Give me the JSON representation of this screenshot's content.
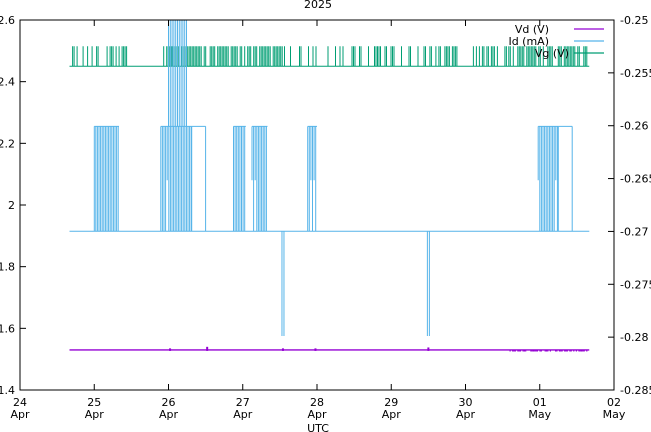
{
  "chart_data": {
    "type": "line",
    "title": "2025",
    "xlabel": "UTC",
    "ylabel": "",
    "y2label": "",
    "x_ticks": [
      {
        "day": "24",
        "month": "Apr"
      },
      {
        "day": "25",
        "month": "Apr"
      },
      {
        "day": "26",
        "month": "Apr"
      },
      {
        "day": "27",
        "month": "Apr"
      },
      {
        "day": "28",
        "month": "Apr"
      },
      {
        "day": "29",
        "month": "Apr"
      },
      {
        "day": "30",
        "month": "Apr"
      },
      {
        "day": "01",
        "month": "May"
      },
      {
        "day": "02",
        "month": "May"
      }
    ],
    "xlim": [
      "2025-04-24T00:00",
      "2025-05-02T00:00"
    ],
    "ylim": [
      1.4,
      2.6
    ],
    "y_ticks": [
      "1.4",
      "1.6",
      "1.8",
      "2",
      "2.2",
      "2.4",
      "2.6"
    ],
    "y2lim": [
      -0.285,
      -0.25
    ],
    "y2_ticks": [
      "-0.285",
      "-0.28",
      "-0.275",
      "-0.27",
      "-0.265",
      "-0.26",
      "-0.255",
      "-0.25"
    ],
    "grid": false,
    "legend_position": "top-right",
    "series": [
      {
        "name": "Vd (V)",
        "axis": "left",
        "color": "#9400d3",
        "baseline": 1.53,
        "alt": 1.525,
        "start": "2025-04-24T16:00",
        "end": "2025-05-01T16:00",
        "spikes": [
          {
            "t": "2025-04-26T00:30",
            "v": 1.535
          },
          {
            "t": "2025-04-26T12:30",
            "v": 1.54
          },
          {
            "t": "2025-04-27T13:00",
            "v": 1.535
          },
          {
            "t": "2025-04-27T23:30",
            "v": 1.535
          },
          {
            "t": "2025-04-29T12:00",
            "v": 1.538
          }
        ],
        "jitter_start": "2025-04-30T14:00",
        "jitter_end": "2025-05-01T16:00"
      },
      {
        "name": "Id (mA)",
        "axis": "left",
        "color": "#56b4e9",
        "baseline": 1.915,
        "high": 2.255,
        "mid": 2.08,
        "start": "2025-04-24T16:00",
        "end": "2025-05-01T16:00",
        "high_blocks": [
          {
            "start": "2025-04-25T00:00",
            "end": "2025-04-25T08:00",
            "dense": true
          },
          {
            "start": "2025-04-25T21:30",
            "end": "2025-04-26T07:30",
            "dense": true
          },
          {
            "start": "2025-04-26T07:30",
            "end": "2025-04-26T12:00",
            "dense": false
          },
          {
            "start": "2025-04-26T21:00",
            "end": "2025-04-27T01:00",
            "dense": true
          },
          {
            "start": "2025-04-27T03:00",
            "end": "2025-04-27T08:00",
            "dense": true
          },
          {
            "start": "2025-04-27T21:00",
            "end": "2025-04-28T00:00",
            "dense": true
          },
          {
            "start": "2025-04-30T23:30",
            "end": "2025-05-01T06:00",
            "dense": true
          },
          {
            "start": "2025-05-01T06:00",
            "end": "2025-05-01T10:30",
            "dense": false
          }
        ],
        "dips": [
          {
            "t": "2025-04-27T13:00",
            "v": 1.575
          },
          {
            "t": "2025-04-29T12:00",
            "v": 1.575
          }
        ]
      },
      {
        "name": "Vg (V)",
        "axis": "left",
        "color": "#009e73",
        "baseline": 2.45,
        "high": 2.515,
        "start": "2025-04-24T16:00",
        "end": "2025-05-01T16:00",
        "spike_ranges": [
          {
            "start": "2025-04-24T17:00",
            "end": "2025-04-25T11:00",
            "density": 0.5
          },
          {
            "start": "2025-04-25T21:00",
            "end": "2025-04-27T13:00",
            "density": 0.75
          },
          {
            "start": "2025-04-27T13:00",
            "end": "2025-04-29T12:00",
            "density": 0.35
          },
          {
            "start": "2025-04-29T12:00",
            "end": "2025-04-30T14:00",
            "density": 0.55
          },
          {
            "start": "2025-04-30T14:00",
            "end": "2025-05-01T16:00",
            "density": 0.6
          }
        ],
        "tall_range": {
          "start": "2025-04-26T00:00",
          "end": "2025-04-26T06:00",
          "v": 2.6
        }
      }
    ]
  }
}
